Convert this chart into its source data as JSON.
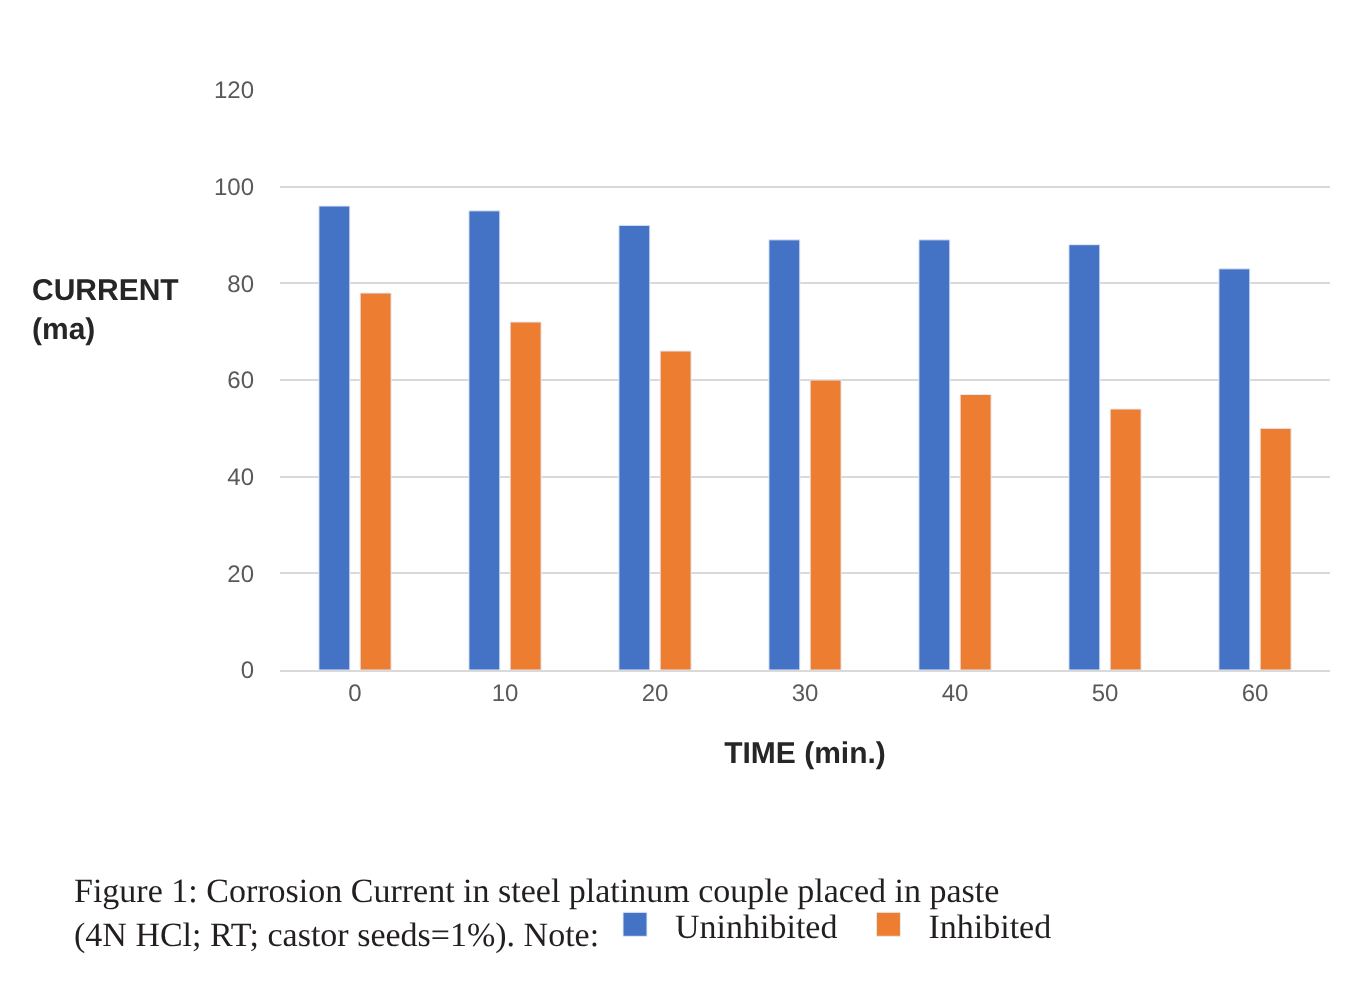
{
  "chart_data": {
    "type": "bar",
    "xlabel": "TIME (min.)",
    "ylabel": "CURRENT\n(ma)",
    "categories": [
      "0",
      "10",
      "20",
      "30",
      "40",
      "50",
      "60"
    ],
    "series": [
      {
        "name": "Uninhibited",
        "color": "#4472c4",
        "values": [
          96,
          95,
          92,
          89,
          89,
          88,
          83
        ]
      },
      {
        "name": "Inhibited",
        "color": "#ed7d31",
        "values": [
          78,
          72,
          66,
          60,
          57,
          54,
          50
        ]
      }
    ],
    "ylim": [
      0,
      120
    ],
    "yticks": [
      0,
      20,
      40,
      60,
      80,
      100,
      120
    ],
    "grid": "y",
    "legend": "bottom",
    "annotations": [
      "Figure 1: Corrosion Current in steel platinum couple placed in paste\n(4N HCl; RT; castor seeds=1%). Note:"
    ]
  }
}
